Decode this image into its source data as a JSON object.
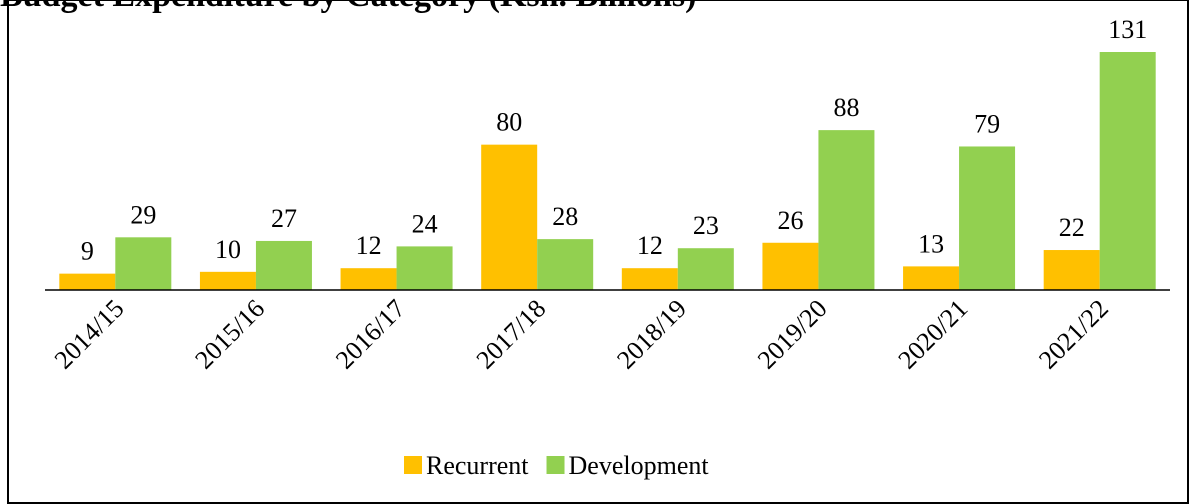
{
  "chart_data": {
    "type": "bar",
    "title": "Budget Expenditure by Category (Ksh. Billions)",
    "categories": [
      "2014/15",
      "2015/16",
      "2016/17",
      "2017/18",
      "2018/19",
      "2019/20",
      "2020/21",
      "2021/22"
    ],
    "series": [
      {
        "name": "Recurrent",
        "color": "#ffc000",
        "values": [
          9,
          10,
          12,
          80,
          12,
          26,
          13,
          22
        ]
      },
      {
        "name": "Development",
        "color": "#92d050",
        "values": [
          29,
          27,
          24,
          28,
          23,
          88,
          79,
          131
        ]
      }
    ],
    "legend": "bottom"
  }
}
